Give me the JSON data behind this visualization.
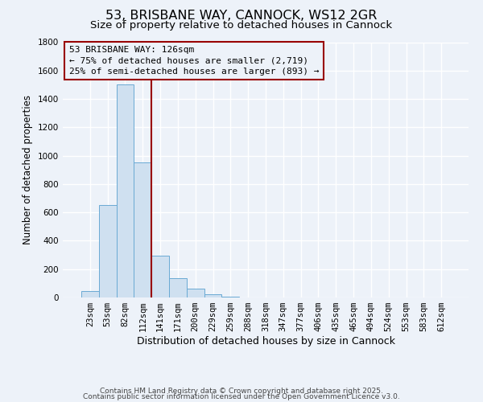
{
  "title": "53, BRISBANE WAY, CANNOCK, WS12 2GR",
  "subtitle": "Size of property relative to detached houses in Cannock",
  "xlabel": "Distribution of detached houses by size in Cannock",
  "ylabel": "Number of detached properties",
  "bar_labels": [
    "23sqm",
    "53sqm",
    "82sqm",
    "112sqm",
    "141sqm",
    "171sqm",
    "200sqm",
    "229sqm",
    "259sqm",
    "288sqm",
    "318sqm",
    "347sqm",
    "377sqm",
    "406sqm",
    "435sqm",
    "465sqm",
    "494sqm",
    "524sqm",
    "553sqm",
    "583sqm",
    "612sqm"
  ],
  "values": [
    45,
    650,
    1500,
    950,
    295,
    135,
    65,
    20,
    5,
    2,
    1,
    0,
    0,
    0,
    0,
    0,
    0,
    0,
    0,
    0,
    0
  ],
  "bar_color": "#cfe0f0",
  "bar_edge_color": "#6aaad4",
  "ylim": [
    0,
    1800
  ],
  "yticks": [
    0,
    200,
    400,
    600,
    800,
    1000,
    1200,
    1400,
    1600,
    1800
  ],
  "vline_x": 3.5,
  "vline_color": "#990000",
  "annotation_title": "53 BRISBANE WAY: 126sqm",
  "annotation_line1": "← 75% of detached houses are smaller (2,719)",
  "annotation_line2": "25% of semi-detached houses are larger (893) →",
  "annotation_box_edge": "#990000",
  "footer1": "Contains HM Land Registry data © Crown copyright and database right 2025.",
  "footer2": "Contains public sector information licensed under the Open Government Licence v3.0.",
  "bg_color": "#edf2f9",
  "grid_color": "#ffffff",
  "title_fontsize": 11.5,
  "subtitle_fontsize": 9.5,
  "xlabel_fontsize": 9,
  "ylabel_fontsize": 8.5,
  "tick_fontsize": 7.5,
  "footer_fontsize": 6.5,
  "ann_fontsize": 8
}
